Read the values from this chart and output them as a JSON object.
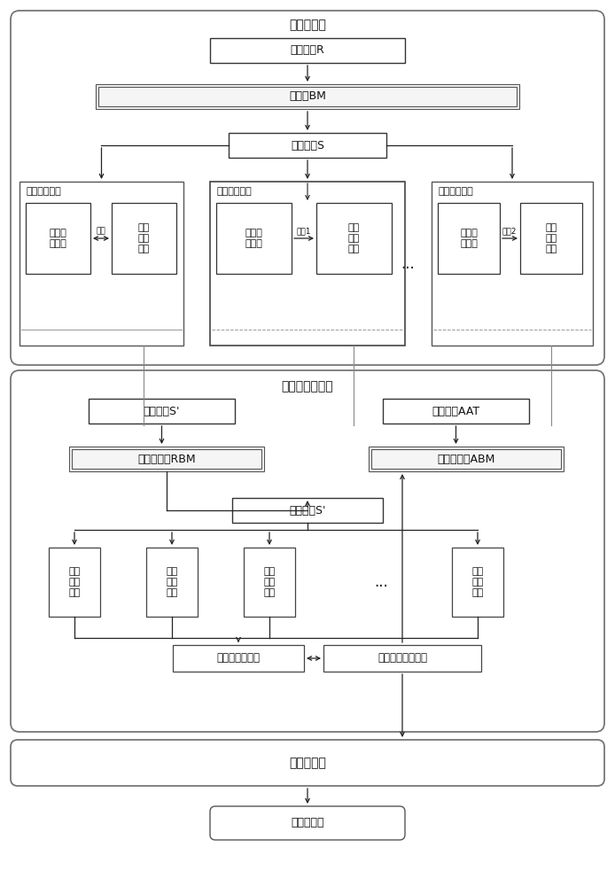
{
  "top_section_label": "接入子系统",
  "mid_section_label": "鉴权中心子系统",
  "bot_section_label": "权限数据库",
  "recv_thread_R": "接收线程R",
  "data_area_BM": "数据区BM",
  "dispatch_thread_S": "分发线程S",
  "priv_proc_thread": "权限处理线程",
  "priv_analysis": "权限分\n析处理",
  "get_auth_data": "获取\n鉴权\n数据",
  "msg_data": "数据",
  "msg1": "消息1",
  "msg2": "消息2",
  "ellipsis": "...",
  "recv_thread_Sp": "接收线程S'",
  "resp_thread_AAT": "响应线程AAT",
  "req_data_RBM": "请求数据区RBM",
  "resp_data_ABM": "响应数据区ABM",
  "dispatch_thread_Sp": "分发线程S'",
  "data_fetch_thread": "数据\n获取\n线程",
  "priv_data_store": "权限数据存储区",
  "priv_data_sync": "权限数据同步线程",
  "priv_db_box": "权限数据库"
}
